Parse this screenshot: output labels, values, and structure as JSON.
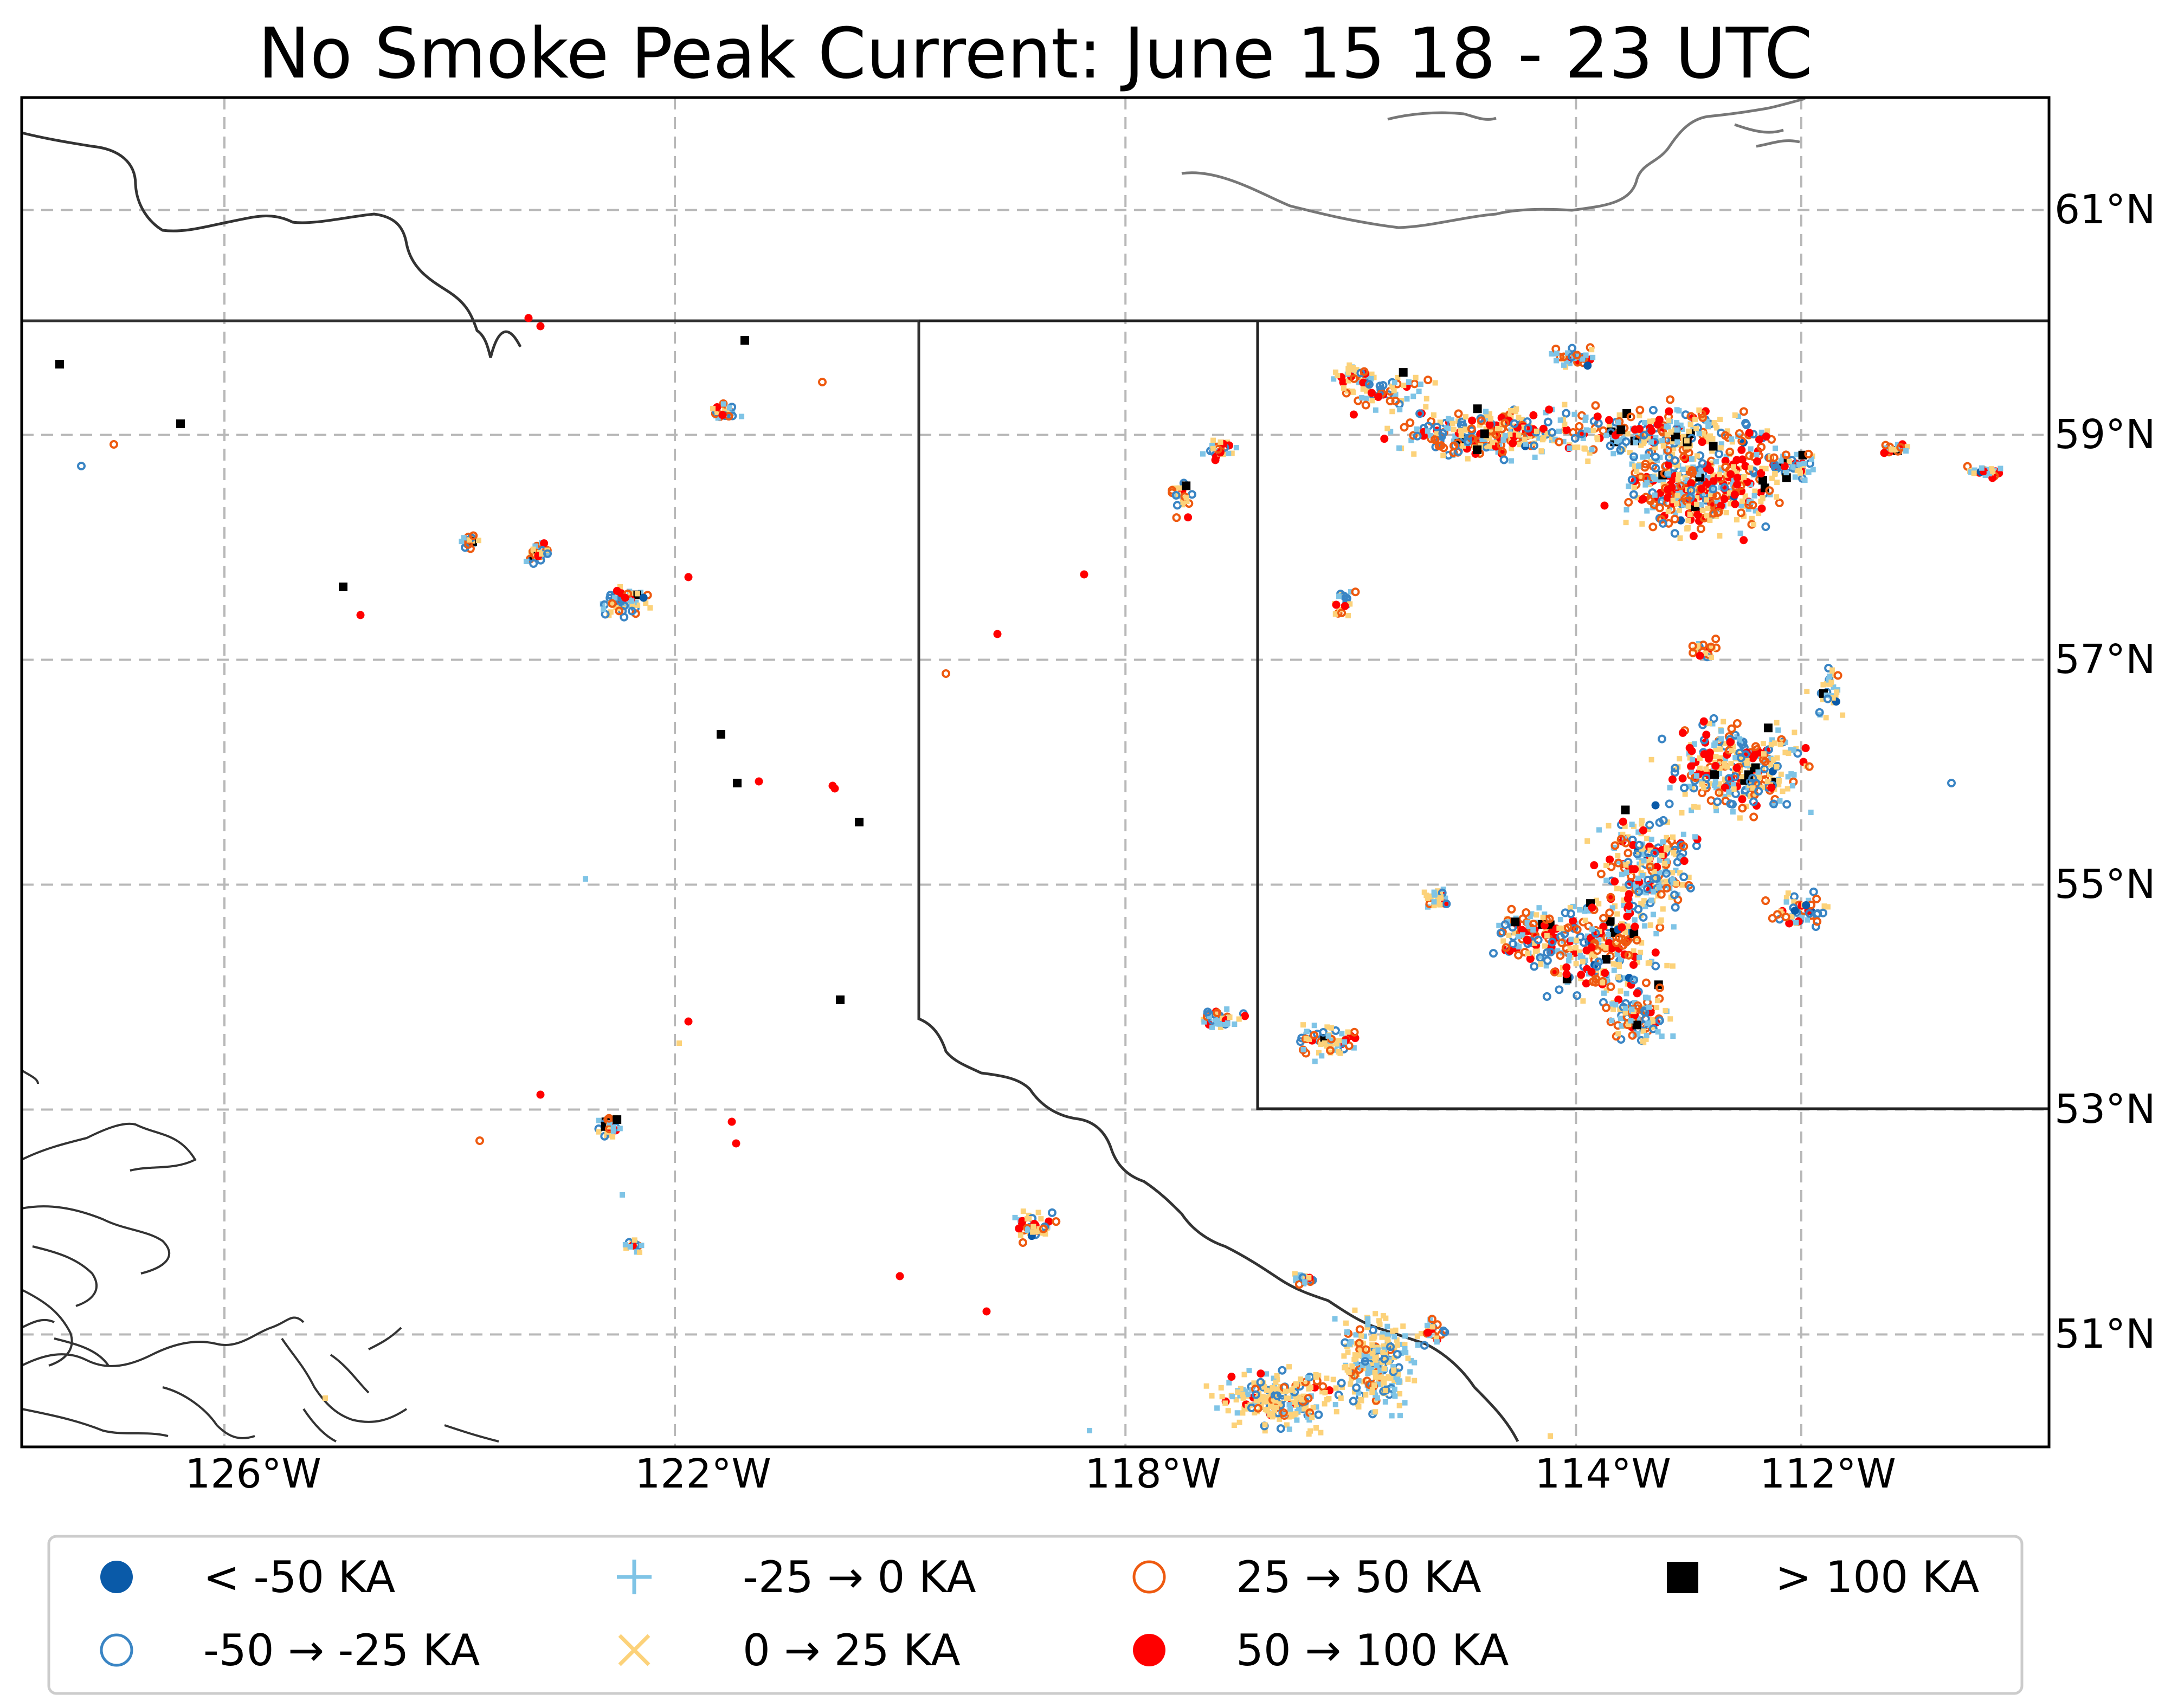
{
  "map": {
    "title": "No Smoke Peak Current: June 15 18 - 23 UTC",
    "lon_labels": [
      "126°W",
      "122°W",
      "118°W",
      "114°W",
      "112°W"
    ],
    "lat_labels": [
      "61°N",
      "59°N",
      "57°N",
      "55°N",
      "53°N",
      "51°N"
    ],
    "lon_values": [
      -126,
      -122,
      -118,
      -114,
      -112
    ],
    "lat_values": [
      61,
      59,
      57,
      55,
      53,
      51
    ],
    "lon_range": [
      -127.8,
      -109.8
    ],
    "lat_range": [
      50.0,
      62.0
    ],
    "grid": true,
    "legend_position": "bottom",
    "colors": {
      "lt_neg50": "#0a5aa8",
      "neg50_neg25": "#3a85c4",
      "neg25_0": "#7fc4e6",
      "0_25": "#fcd27a",
      "25_50": "#ee5a10",
      "50_100": "#ff0000",
      "gt_100": "#000000",
      "coast": "#333333",
      "coast_north": "#777777",
      "grid": "#b8b8b8"
    }
  },
  "legend": [
    {
      "label": "< -50 KA",
      "marker": "filled-circle",
      "color": "#0a5aa8"
    },
    {
      "label": "-50 → -25 KA",
      "marker": "hollow-circle",
      "color": "#3a85c4"
    },
    {
      "label": "-25 → 0 KA",
      "marker": "plus",
      "color": "#7fc4e6"
    },
    {
      "label": "0 → 25 KA",
      "marker": "cross",
      "color": "#fcd27a"
    },
    {
      "label": "25 → 50 KA",
      "marker": "hollow-circle",
      "color": "#ee5a10"
    },
    {
      "label": "50 → 100 KA",
      "marker": "filled-circle",
      "color": "#ff0000"
    },
    {
      "label": "> 100 KA",
      "marker": "square",
      "color": "#000000"
    }
  ]
}
